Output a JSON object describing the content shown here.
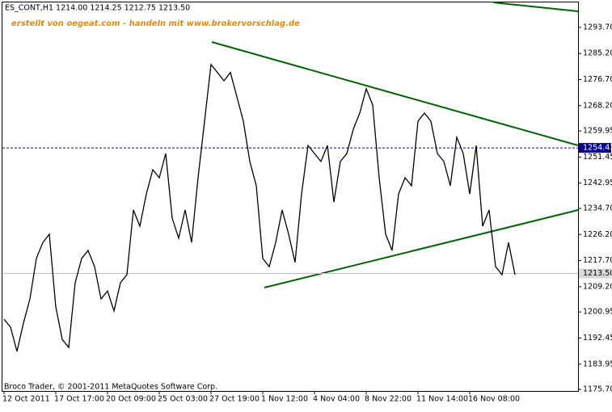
{
  "chart_data": {
    "type": "line",
    "title": "ES_CONT,H1  1214.00 1214.25 1212.75 1213.50",
    "subtitle": "erstellt von oegeat.com - handeln mit www.brokervorschlag.de",
    "footer": "Broco Trader, © 2001-2011 MetaQuotes Software Corp.",
    "categories": [
      "12 Oct 2011",
      null,
      null,
      null,
      null,
      null,
      null,
      null,
      "17 Oct 17:00",
      null,
      null,
      null,
      null,
      null,
      null,
      null,
      "20 Oct 09:00",
      null,
      null,
      null,
      null,
      null,
      null,
      null,
      "25 Oct 03:00",
      null,
      null,
      null,
      null,
      null,
      null,
      null,
      "27 Oct 19:00",
      null,
      null,
      null,
      null,
      null,
      null,
      null,
      "1 Nov 12:00",
      null,
      null,
      null,
      null,
      null,
      null,
      null,
      "4 Nov 04:00",
      null,
      null,
      null,
      null,
      null,
      null,
      null,
      "8 Nov 22:00",
      null,
      null,
      null,
      null,
      null,
      null,
      null,
      "11 Nov 14:00",
      null,
      null,
      null,
      null,
      null,
      null,
      null,
      "16 Nov 08:00",
      null,
      null,
      null,
      null,
      null,
      null,
      null
    ],
    "values": [
      1198.6,
      1196.0,
      1188.1,
      1197.3,
      1205.2,
      1218.4,
      1223.6,
      1226.3,
      1202.6,
      1192.0,
      1189.4,
      1210.5,
      1218.4,
      1221.0,
      1215.7,
      1205.2,
      1207.8,
      1201.3,
      1210.5,
      1213.1,
      1234.2,
      1228.9,
      1239.4,
      1247.3,
      1244.7,
      1252.6,
      1231.5,
      1225.0,
      1234.2,
      1223.6,
      1244.7,
      1263.1,
      1281.6,
      1279.0,
      1276.3,
      1279.0,
      1271.1,
      1263.1,
      1250.0,
      1242.1,
      1218.4,
      1215.7,
      1223.6,
      1234.2,
      1226.3,
      1217.1,
      1239.4,
      1255.2,
      1252.6,
      1250.0,
      1255.2,
      1236.8,
      1250.0,
      1252.6,
      1260.5,
      1265.8,
      1273.7,
      1268.4,
      1244.7,
      1226.3,
      1221.0,
      1239.4,
      1244.7,
      1242.1,
      1263.1,
      1265.8,
      1263.1,
      1252.6,
      1250.0,
      1242.1,
      1257.9,
      1252.6,
      1239.4,
      1255.2,
      1228.9,
      1234.2,
      1215.7,
      1213.1,
      1223.6,
      1213.1
    ],
    "color": "#000000",
    "ylim": [
      1175.2,
      1302.1
    ],
    "yticks": [
      {
        "value": 1175.7,
        "label": "1175.70"
      },
      {
        "value": 1183.95,
        "label": "1183.95"
      },
      {
        "value": 1192.45,
        "label": "1192.45"
      },
      {
        "value": 1200.95,
        "label": "1200.95"
      },
      {
        "value": 1209.2,
        "label": "1209.20"
      },
      {
        "value": 1217.7,
        "label": "1217.70"
      },
      {
        "value": 1226.2,
        "label": "1226.20"
      },
      {
        "value": 1234.7,
        "label": "1234.70"
      },
      {
        "value": 1242.95,
        "label": "1242.95"
      },
      {
        "value": 1251.45,
        "label": "1251.45"
      },
      {
        "value": 1259.95,
        "label": "1259.95"
      },
      {
        "value": 1268.2,
        "label": "1268.20"
      },
      {
        "value": 1276.7,
        "label": "1276.70"
      },
      {
        "value": 1285.2,
        "label": "1285.20"
      },
      {
        "value": 1293.7,
        "label": "1293.70"
      }
    ],
    "level_line": 1254.43,
    "last_price": {
      "value": 1213.5,
      "label": "1213.50"
    }
  }
}
